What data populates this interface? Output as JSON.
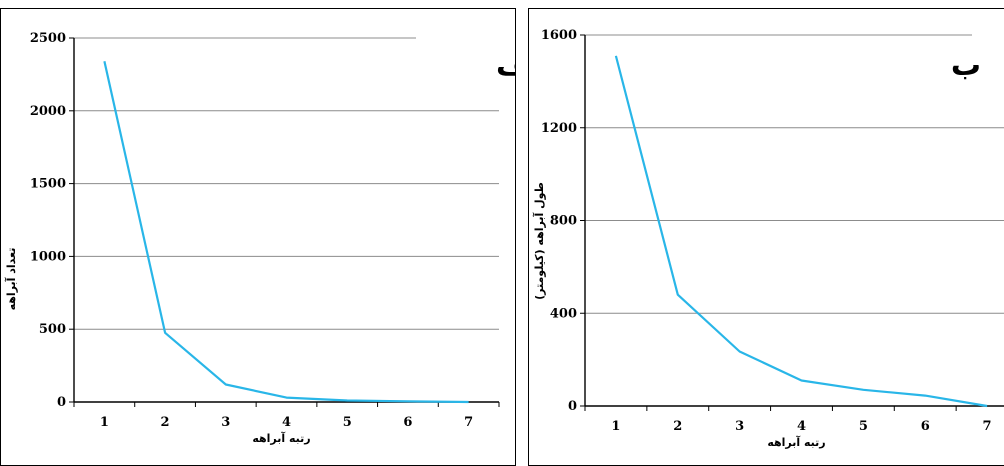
{
  "chart_data": [
    {
      "type": "line",
      "title": "الف",
      "xlabel": "رتبه آبراهه",
      "ylabel": "تعداد آبراهه",
      "x": [
        1,
        2,
        3,
        4,
        5,
        6,
        7
      ],
      "series": [
        {
          "values": [
            2340,
            475,
            120,
            30,
            10,
            5,
            0
          ]
        }
      ],
      "ylim": [
        0,
        2500
      ],
      "yticks": [
        0,
        500,
        1000,
        1500,
        2000,
        2500
      ],
      "grid": true,
      "color": "#29b6e8"
    },
    {
      "type": "line",
      "title": "ب",
      "xlabel": "رتبه آبراهه",
      "ylabel": "طول آبراهه (کیلومتر)",
      "x": [
        1,
        2,
        3,
        4,
        5,
        6,
        7
      ],
      "series": [
        {
          "values": [
            1510,
            480,
            235,
            110,
            70,
            45,
            0
          ]
        }
      ],
      "ylim": [
        0,
        1600
      ],
      "yticks": [
        0,
        400,
        800,
        1200,
        1600
      ],
      "grid": true,
      "color": "#29b6e8"
    }
  ]
}
